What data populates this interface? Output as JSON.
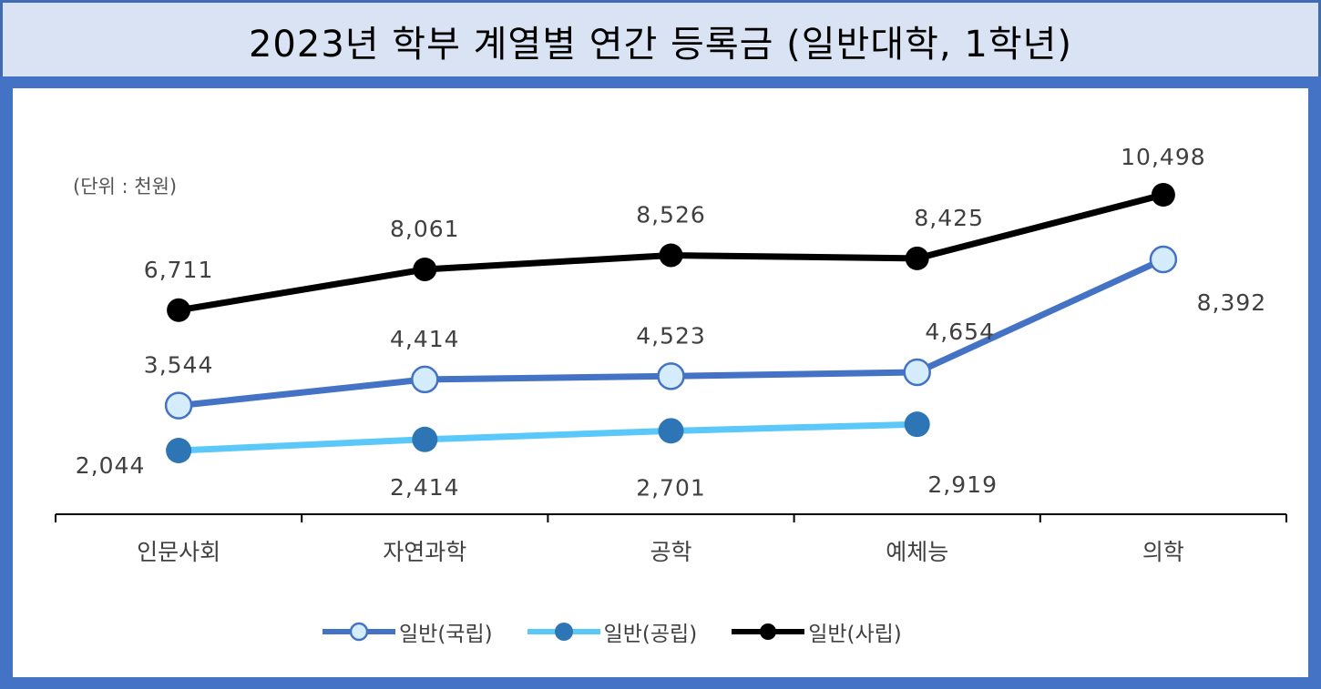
{
  "title": "2023년 학부 계열별 연간 등록금 (일반대학, 1학년)",
  "unit": "(단위 : 천원)",
  "colors": {
    "frame": "#4472c4",
    "title_bg": "#dae3f3",
    "national": "#4472c4",
    "public": "#5bc8fa",
    "private": "#000000"
  },
  "chart_data": {
    "type": "line",
    "categories": [
      "인문사회",
      "자연과학",
      "공학",
      "예체능",
      "의학"
    ],
    "series": [
      {
        "name": "일반(국립)",
        "values": [
          3544,
          4414,
          4523,
          4654,
          8392
        ],
        "labels": [
          "3,544",
          "4,414",
          "4,523",
          "4,654",
          "8,392"
        ]
      },
      {
        "name": "일반(공립)",
        "values": [
          2044,
          2414,
          2701,
          2919,
          null
        ],
        "labels": [
          "2,044",
          "2,414",
          "2,701",
          "2,919",
          ""
        ]
      },
      {
        "name": "일반(사립)",
        "values": [
          6711,
          8061,
          8526,
          8425,
          10498
        ],
        "labels": [
          "6,711",
          "8,061",
          "8,526",
          "8,425",
          "10,498"
        ]
      }
    ],
    "ylim": [
      0,
      12000
    ],
    "grid": false,
    "legend": "bottom"
  }
}
